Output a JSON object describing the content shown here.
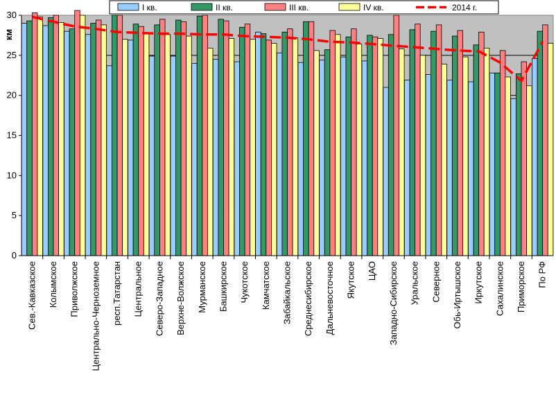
{
  "chart_data": {
    "type": "bar",
    "ylabel": "км",
    "ylim": [
      0,
      30
    ],
    "yticks": [
      0,
      5,
      10,
      15,
      20,
      25,
      30
    ],
    "grid": true,
    "legend": "top",
    "categories": [
      "Сев.-Кавказское",
      "Колымское",
      "Приволжское",
      "Центрально-Черноземное",
      "респ.Татарстан",
      "Центральное",
      "Северо-Западное",
      "Верхне-Волжское",
      "Мурманское",
      "Башкирское",
      "Чукотское",
      "Камчатское",
      "Забайкальское",
      "Среднесибирское",
      "Дальневосточное",
      "Якутское",
      "ЦАО",
      "Западно-Сибирское",
      "Уральское",
      "Северное",
      "Обь-Иртышское",
      "Иркутское",
      "Сахалинское",
      "Приморское",
      "По РФ"
    ],
    "series": [
      {
        "name": "I кв.",
        "color": "#99ccff",
        "values": [
          29.0,
          28.7,
          28.0,
          27.6,
          23.7,
          26.9,
          24.9,
          24.9,
          24.0,
          24.5,
          24.2,
          27.9,
          25.3,
          24.1,
          24.4,
          24.8,
          24.3,
          21.0,
          21.9,
          22.6,
          21.9,
          21.7,
          22.8,
          19.6,
          24.6
        ]
      },
      {
        "name": "II кв.",
        "color": "#339966",
        "values": [
          29.3,
          29.7,
          28.3,
          29.0,
          30.0,
          28.9,
          28.8,
          29.4,
          29.9,
          29.5,
          28.5,
          27.7,
          27.9,
          29.2,
          25.7,
          27.3,
          27.5,
          27.6,
          28.2,
          28.0,
          27.4,
          26.3,
          22.8,
          22.7,
          28.0
        ]
      },
      {
        "name": "III кв.",
        "color": "#ff8080",
        "values": [
          30.3,
          30.0,
          30.6,
          29.4,
          30.0,
          28.6,
          29.5,
          29.2,
          30.0,
          29.3,
          28.9,
          26.9,
          28.3,
          29.2,
          28.1,
          28.3,
          27.3,
          30.0,
          28.9,
          28.8,
          28.1,
          27.9,
          25.6,
          24.2,
          28.8
        ]
      },
      {
        "name": "IV кв.",
        "color": "#ffff99",
        "values": [
          29.8,
          29.1,
          30.0,
          28.8,
          27.0,
          27.8,
          27.6,
          27.4,
          25.9,
          27.1,
          27.0,
          26.5,
          27.2,
          25.6,
          27.6,
          26.4,
          27.1,
          25.8,
          25.0,
          23.9,
          24.8,
          25.9,
          22.3,
          21.2,
          26.5
        ]
      }
    ],
    "line_series": {
      "name": "2014 г.",
      "color": "#ff0000",
      "values": [
        29.8,
        29.2,
        28.6,
        28.3,
        27.9,
        27.8,
        27.7,
        27.7,
        27.6,
        27.6,
        27.4,
        27.3,
        27.2,
        27.0,
        26.7,
        26.6,
        26.4,
        26.2,
        26.0,
        25.8,
        25.6,
        25.5,
        24.1,
        21.8,
        26.7
      ]
    }
  }
}
